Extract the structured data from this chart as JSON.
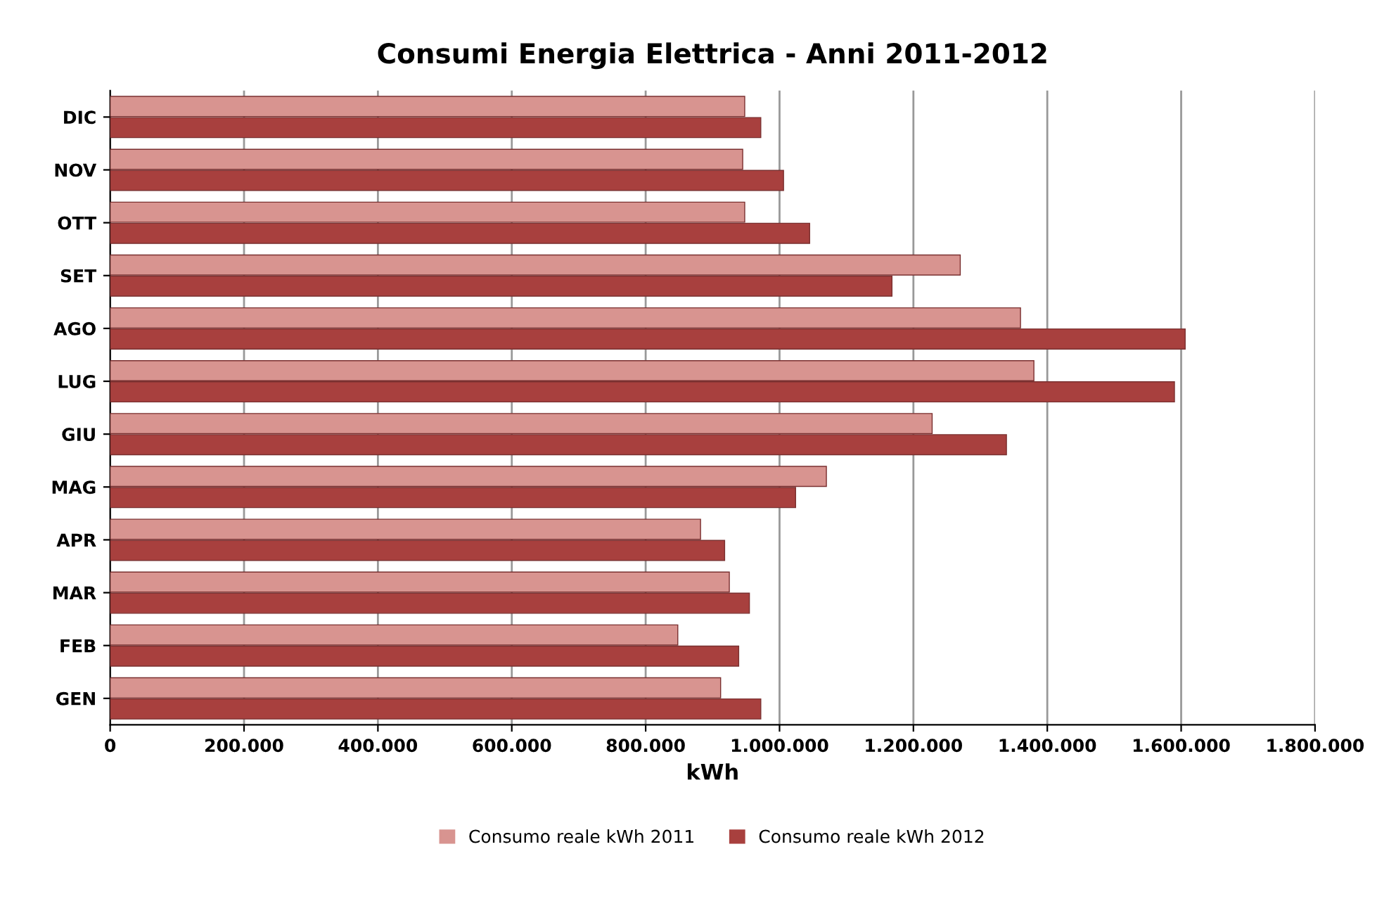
{
  "chart_data": {
    "type": "bar",
    "orientation": "horizontal",
    "title": "Consumi Energia Elettrica - Anni 2011-2012",
    "xlabel": "kWh",
    "categories": [
      "DIC",
      "NOV",
      "OTT",
      "SET",
      "AGO",
      "LUG",
      "GIU",
      "MAG",
      "APR",
      "MAR",
      "FEB",
      "GEN"
    ],
    "series": [
      {
        "name": "Consumo reale kWh 2011",
        "color": "#d89490",
        "values": [
          948000,
          945000,
          948000,
          1270000,
          1360000,
          1380000,
          1228000,
          1070000,
          882000,
          925000,
          848000,
          912000
        ]
      },
      {
        "name": "Consumo reale kWh 2012",
        "color": "#a8403e",
        "values": [
          972000,
          1006000,
          1045000,
          1168000,
          1606000,
          1590000,
          1339000,
          1024000,
          918000,
          955000,
          939000,
          972000
        ]
      }
    ],
    "xlim": [
      0,
      1800000
    ],
    "xticks": [
      0,
      {
        "value": 200000,
        "label": "200.000"
      },
      {
        "value": 400000,
        "label": "400.000"
      },
      {
        "value": 600000,
        "label": "600.000"
      },
      {
        "value": 800000,
        "label": "800.000"
      },
      {
        "value": 1000000,
        "label": "1.000.000"
      },
      {
        "value": 1200000,
        "label": "1.200.000"
      },
      {
        "value": 1400000,
        "label": "1.400.000"
      },
      {
        "value": 1600000,
        "label": "1.600.000"
      },
      {
        "value": 1800000,
        "label": "1.800.000"
      }
    ],
    "grid": "x",
    "legend": "bottom"
  }
}
